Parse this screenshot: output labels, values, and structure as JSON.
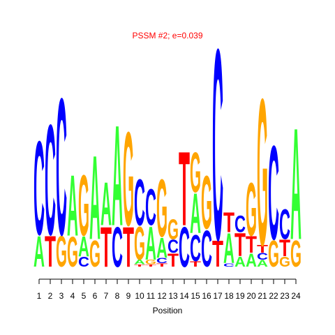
{
  "chart_data": {
    "type": "logo",
    "title": "PSSM #2; e=0.039",
    "x_label": "Position",
    "x": [
      1,
      2,
      3,
      4,
      5,
      6,
      7,
      8,
      9,
      10,
      11,
      12,
      13,
      14,
      15,
      16,
      17,
      18,
      19,
      20,
      21,
      22,
      23,
      24
    ],
    "xlim": [
      0.5,
      24.5
    ],
    "xticks": [
      1,
      2,
      3,
      4,
      5,
      6,
      7,
      8,
      9,
      10,
      11,
      12,
      13,
      14,
      15,
      16,
      17,
      18,
      19,
      20,
      21,
      22,
      23,
      24
    ],
    "ylim": [
      0,
      2
    ],
    "colors": {
      "A": "#33ff33",
      "C": "#0000ff",
      "G": "#ffa500",
      "T": "#ff0000"
    },
    "title_color": "#ff0000",
    "columns": [
      {
        "letters": [
          "A",
          "C"
        ],
        "heights": [
          0.28,
          0.85
        ]
      },
      {
        "letters": [
          "T",
          "C"
        ],
        "heights": [
          0.28,
          1.0
        ]
      },
      {
        "letters": [
          "G",
          "C"
        ],
        "heights": [
          0.28,
          1.24
        ]
      },
      {
        "letters": [
          "G",
          "A"
        ],
        "heights": [
          0.27,
          0.55
        ]
      },
      {
        "letters": [
          "C",
          "A",
          "G"
        ],
        "heights": [
          0.09,
          0.18,
          0.55
        ]
      },
      {
        "letters": [
          "G",
          "A"
        ],
        "heights": [
          0.24,
          0.76
        ]
      },
      {
        "letters": [
          "T",
          "A"
        ],
        "heights": [
          0.36,
          0.39
        ]
      },
      {
        "letters": [
          "C",
          "A"
        ],
        "heights": [
          0.36,
          0.91
        ]
      },
      {
        "letters": [
          "T",
          "G"
        ],
        "heights": [
          0.36,
          0.85
        ]
      },
      {
        "letters": [
          "T",
          "A",
          "G",
          "C"
        ],
        "heights": [
          0.02,
          0.04,
          0.3,
          0.42
        ]
      },
      {
        "letters": [
          "T",
          "G",
          "A",
          "C"
        ],
        "heights": [
          0.02,
          0.04,
          0.3,
          0.33
        ]
      },
      {
        "letters": [
          "T",
          "C",
          "A",
          "G"
        ],
        "heights": [
          0.03,
          0.05,
          0.18,
          0.52
        ]
      },
      {
        "letters": [
          "T",
          "C",
          "G"
        ],
        "heights": [
          0.12,
          0.12,
          0.18
        ]
      },
      {
        "letters": [
          "C",
          "T"
        ],
        "heights": [
          0.36,
          0.67
        ]
      },
      {
        "letters": [
          "T",
          "C",
          "A",
          "G"
        ],
        "heights": [
          0.05,
          0.24,
          0.36,
          0.36
        ]
      },
      {
        "letters": [
          "C",
          "G"
        ],
        "heights": [
          0.33,
          0.48
        ]
      },
      {
        "letters": [
          "T",
          "C"
        ],
        "heights": [
          0.24,
          1.73
        ]
      },
      {
        "letters": [
          "C",
          "A",
          "T"
        ],
        "heights": [
          0.03,
          0.27,
          0.18
        ]
      },
      {
        "letters": [
          "A",
          "T",
          "C"
        ],
        "heights": [
          0.09,
          0.21,
          0.15
        ]
      },
      {
        "letters": [
          "A",
          "T",
          "G"
        ],
        "heights": [
          0.12,
          0.15,
          0.48
        ]
      },
      {
        "letters": [
          "A",
          "C",
          "T",
          "G"
        ],
        "heights": [
          0.06,
          0.06,
          0.07,
          1.33
        ]
      },
      {
        "letters": [
          "G",
          "C"
        ],
        "heights": [
          0.24,
          0.85
        ]
      },
      {
        "letters": [
          "G",
          "T",
          "C"
        ],
        "heights": [
          0.09,
          0.15,
          0.27
        ]
      },
      {
        "letters": [
          "G",
          "A"
        ],
        "heights": [
          0.24,
          1.01
        ]
      }
    ]
  }
}
